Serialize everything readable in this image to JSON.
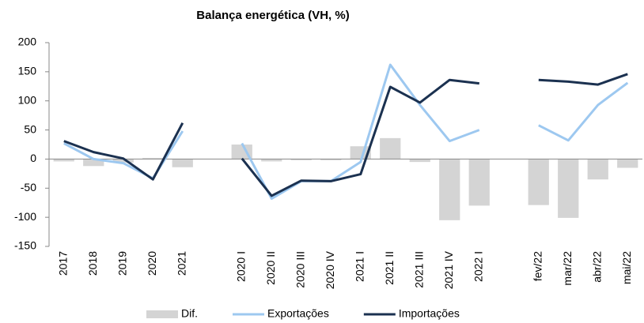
{
  "chart_data": {
    "type": "bar-line",
    "title": "Balança energética (VH, %)",
    "categories": [
      "2017",
      "2018",
      "2019",
      "2020",
      "2021",
      null,
      "2020 I",
      "2020 II",
      "2020 III",
      "2020 IV",
      "2021 I",
      "2021 II",
      "2021 III",
      "2021 IV",
      "2022 I",
      null,
      "fev/22",
      "mar/22",
      "abr/22",
      "mai/22"
    ],
    "series": [
      {
        "name": "Dif.",
        "type": "bar",
        "color": "#d4d4d4",
        "values": [
          -4,
          -12,
          -6,
          2,
          -14,
          null,
          25,
          -4,
          -2,
          -2,
          22,
          36,
          -5,
          -105,
          -80,
          null,
          -79,
          -101,
          -35,
          -15
        ]
      },
      {
        "name": "Exportações",
        "type": "line",
        "color": "#9dc8f0",
        "values": [
          27,
          0,
          -7,
          -33,
          48,
          null,
          27,
          -68,
          -38,
          -38,
          -5,
          162,
          93,
          31,
          50,
          null,
          58,
          32,
          93,
          131
        ]
      },
      {
        "name": "Importações",
        "type": "line",
        "color": "#1b3150",
        "values": [
          31,
          12,
          1,
          -35,
          62,
          null,
          1,
          -63,
          -37,
          -38,
          -26,
          124,
          97,
          136,
          130,
          null,
          136,
          133,
          128,
          146
        ]
      }
    ],
    "ylim": [
      -150,
      200
    ],
    "yticks": [
      -150,
      -100,
      -50,
      0,
      50,
      100,
      150,
      200
    ],
    "grid": false,
    "legend": "bottom"
  }
}
